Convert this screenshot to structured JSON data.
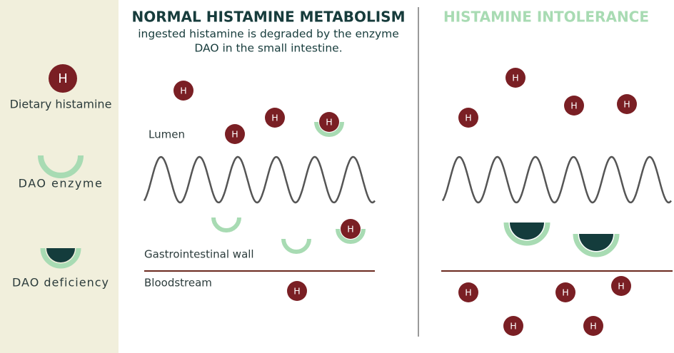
{
  "sidebar": {
    "histamine_symbol": "H",
    "items": [
      "Dietary histamine",
      "DAO enzyme",
      "DAO deficiency"
    ]
  },
  "normal": {
    "title": "NORMAL HISTAMINE METABOLISM",
    "subtitle": [
      "ingested histamine is degraded by the enzyme",
      "DAO in the small intestine."
    ],
    "labels": {
      "lumen": "Lumen",
      "wall": "Gastrointestinal wall",
      "bloodstream": "Bloodstream"
    }
  },
  "intolerance": {
    "title": "HISTAMINE INTOLERANCE"
  }
}
